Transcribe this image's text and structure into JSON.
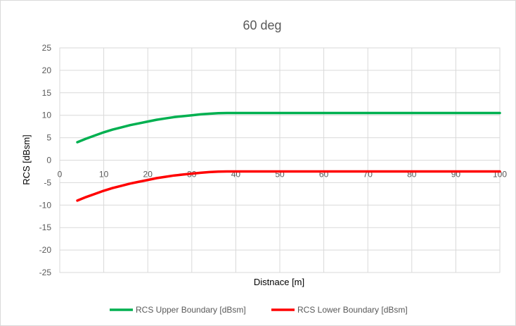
{
  "chart_data": {
    "type": "line",
    "title": "60 deg",
    "xlabel": "Distnace [m]",
    "ylabel": "RCS [dBsm]",
    "xlim": [
      0,
      100
    ],
    "ylim": [
      -25,
      25
    ],
    "x_ticks": [
      0,
      10,
      20,
      30,
      40,
      50,
      60,
      70,
      80,
      90,
      100
    ],
    "y_ticks": [
      25,
      20,
      15,
      10,
      5,
      0,
      -5,
      -10,
      -15,
      -20,
      -25
    ],
    "grid": true,
    "legend_position": "bottom",
    "series": [
      {
        "name": "RCS Upper Boundary [dBsm]",
        "color": "#00b050",
        "x": [
          4,
          6,
          8,
          10,
          12,
          14,
          16,
          18,
          20,
          22,
          24,
          26,
          28,
          30,
          32,
          34,
          36,
          38,
          40,
          50,
          60,
          70,
          80,
          90,
          100
        ],
        "y": [
          4.0,
          4.8,
          5.5,
          6.2,
          6.8,
          7.3,
          7.8,
          8.2,
          8.6,
          9.0,
          9.3,
          9.6,
          9.8,
          10.0,
          10.2,
          10.35,
          10.45,
          10.5,
          10.5,
          10.5,
          10.5,
          10.5,
          10.5,
          10.5,
          10.5
        ]
      },
      {
        "name": "RCS Lower Boundary [dBsm]",
        "color": "#ff0000",
        "x": [
          4,
          6,
          8,
          10,
          12,
          14,
          16,
          18,
          20,
          22,
          24,
          26,
          28,
          30,
          32,
          34,
          36,
          38,
          40,
          50,
          60,
          70,
          80,
          90,
          100
        ],
        "y": [
          -9.0,
          -8.2,
          -7.5,
          -6.8,
          -6.2,
          -5.7,
          -5.2,
          -4.8,
          -4.4,
          -4.0,
          -3.7,
          -3.4,
          -3.2,
          -3.0,
          -2.8,
          -2.65,
          -2.55,
          -2.5,
          -2.5,
          -2.5,
          -2.5,
          -2.5,
          -2.5,
          -2.5,
          -2.5
        ]
      }
    ]
  }
}
